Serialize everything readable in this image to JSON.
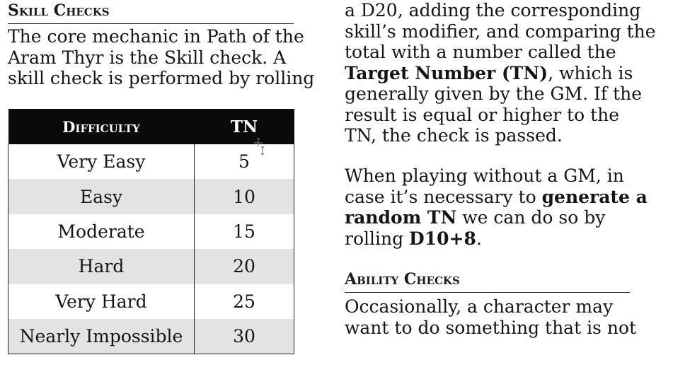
{
  "left": {
    "heading": "Skill Checks",
    "intro_lines": [
      "The core mechanic in Path of the",
      "Aram Thyr is the Skill check. A",
      "skill check is performed by rolling"
    ]
  },
  "table": {
    "headers": {
      "difficulty": "Difficulty",
      "tn": "TN"
    },
    "rows": [
      {
        "difficulty": "Very Easy",
        "tn": "5"
      },
      {
        "difficulty": "Easy",
        "tn": "10"
      },
      {
        "difficulty": "Moderate",
        "tn": "15"
      },
      {
        "difficulty": "Hard",
        "tn": "20"
      },
      {
        "difficulty": "Very Hard",
        "tn": "25"
      },
      {
        "difficulty": "Nearly Impossible",
        "tn": "30"
      }
    ]
  },
  "right": {
    "p1": {
      "l1": "a D20, adding the corresponding",
      "l2": "skill’s modifier, and comparing the",
      "l3": "total with a number called the",
      "l4_bold": "Target Number (TN)",
      "l4_rest": ", which is",
      "l5": "generally given by the GM. If the",
      "l6": "result is equal or higher to the",
      "l7": "TN, the check is passed."
    },
    "p2": {
      "l1": "When playing without a GM, in",
      "l2_pre": "case it’s necessary to ",
      "l2_bold": "generate a",
      "l3_bold": "random TN",
      "l3_rest": " we can do so by",
      "l4_pre": "rolling ",
      "l4_bold": "D10+8",
      "l4_post": "."
    },
    "heading": "Ability Checks",
    "p3": {
      "l1": "Occasionally, a character may",
      "l2": "want to do something that is not"
    }
  }
}
